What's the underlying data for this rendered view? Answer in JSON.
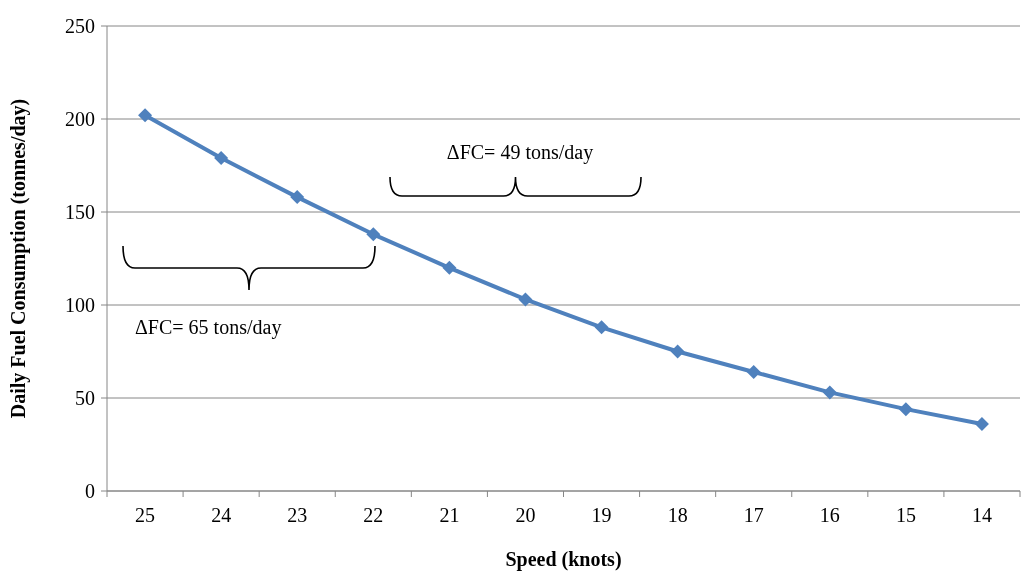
{
  "chart_data": {
    "type": "line",
    "xlabel": "Speed (knots)",
    "ylabel": "Daily Fuel Consumption (tonnes/day)",
    "categories": [
      "25",
      "24",
      "23",
      "22",
      "21",
      "20",
      "19",
      "18",
      "17",
      "16",
      "15",
      "14"
    ],
    "series": [
      {
        "color": "#4f81bd",
        "values": [
          202,
          179,
          158,
          138,
          120,
          103,
          88,
          75,
          64,
          53,
          44,
          36
        ]
      }
    ],
    "ylim": [
      0,
      250
    ],
    "yticks": [
      0,
      50,
      100,
      150,
      200,
      250
    ],
    "grid": "y",
    "marker": "diamond",
    "line_style": "solid",
    "annotations": [
      "ΔFC= 65 tons/day",
      "ΔFC= 49 tons/day"
    ]
  }
}
